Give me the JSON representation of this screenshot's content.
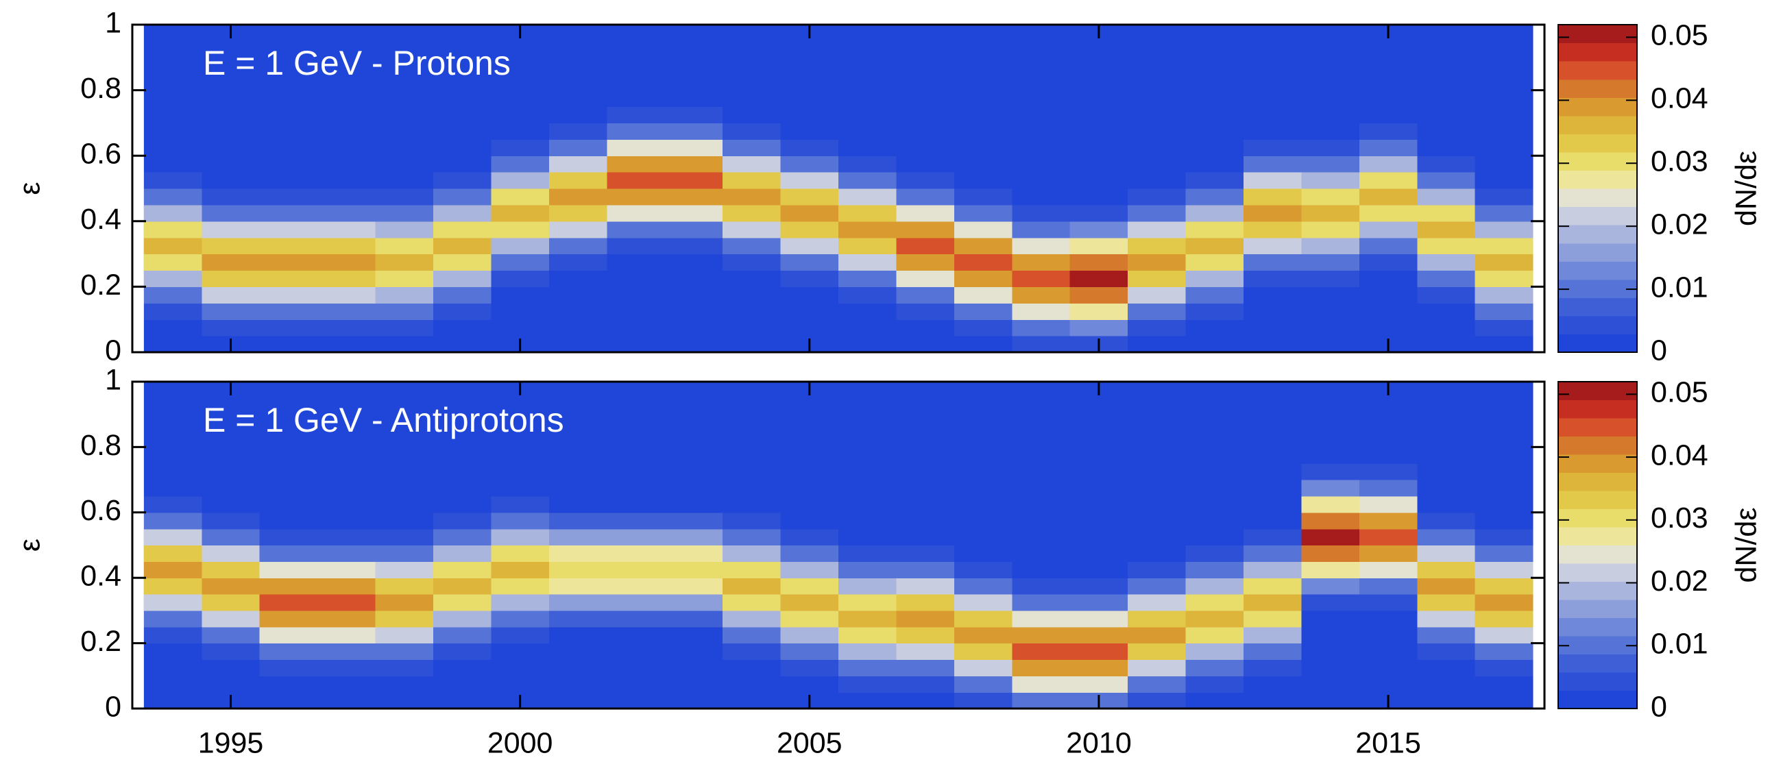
{
  "chart_data": [
    {
      "type": "heatmap",
      "title": "E = 1 GeV - Protons",
      "ylabel": "ε",
      "colorbar_label": "dN/dε",
      "xlim": [
        1993.3,
        2017.7
      ],
      "xticks": [
        1995,
        2000,
        2005,
        2010,
        2015
      ],
      "ylim": [
        0,
        1
      ],
      "yticks": [
        0,
        0.2,
        0.4,
        0.6,
        0.8,
        1
      ],
      "zlim": [
        0,
        0.052
      ],
      "zticks": [
        0,
        0.01,
        0.02,
        0.03,
        0.04,
        0.05
      ],
      "colorscale": [
        "#1f46d8",
        "#2e50d6",
        "#3f5fd6",
        "#5673d8",
        "#7088d9",
        "#8d9fdb",
        "#aab5dd",
        "#c9cde0",
        "#e4e2d0",
        "#ece59a",
        "#e8dc6a",
        "#e2c94a",
        "#dcb53a",
        "#d99a30",
        "#d57a2c",
        "#d7522a",
        "#c62e22",
        "#a61c1c"
      ],
      "background": "#1f46d8",
      "xbins": [
        1993.5,
        1994.5,
        1995.5,
        1996.5,
        1997.5,
        1998.5,
        1999.5,
        2000.5,
        2001.5,
        2002.5,
        2003.5,
        2004.5,
        2005.5,
        2006.5,
        2007.5,
        2008.5,
        2009.5,
        2010.5,
        2011.5,
        2012.5,
        2013.5,
        2014.5,
        2015.5,
        2016.5,
        2017.5
      ],
      "ybins": [
        0,
        0.05,
        0.1,
        0.15,
        0.2,
        0.25,
        0.3,
        0.35,
        0.4,
        0.45,
        0.5,
        0.55,
        0.6,
        0.65,
        0.7,
        0.75,
        0.8,
        0.85,
        0.9,
        0.95,
        1
      ],
      "z": [
        [
          0,
          0.001,
          0.003,
          0.009,
          0.019,
          0.03,
          0.035,
          0.03,
          0.019,
          0.009,
          0.003,
          0.001,
          0,
          0,
          0,
          0,
          0,
          0,
          0,
          0
        ],
        [
          0.001,
          0.003,
          0.01,
          0.022,
          0.034,
          0.04,
          0.034,
          0.022,
          0.01,
          0.003,
          0.001,
          0,
          0,
          0,
          0,
          0,
          0,
          0,
          0,
          0
        ],
        [
          0.001,
          0.003,
          0.01,
          0.022,
          0.034,
          0.04,
          0.034,
          0.022,
          0.01,
          0.003,
          0.001,
          0,
          0,
          0,
          0,
          0,
          0,
          0,
          0,
          0
        ],
        [
          0.001,
          0.003,
          0.01,
          0.022,
          0.034,
          0.04,
          0.034,
          0.022,
          0.01,
          0.003,
          0.001,
          0,
          0,
          0,
          0,
          0,
          0,
          0,
          0,
          0
        ],
        [
          0.001,
          0.003,
          0.009,
          0.019,
          0.03,
          0.035,
          0.03,
          0.019,
          0.009,
          0.003,
          0.001,
          0,
          0,
          0,
          0,
          0,
          0,
          0,
          0,
          0
        ],
        [
          0,
          0.001,
          0.003,
          0.009,
          0.019,
          0.03,
          0.035,
          0.03,
          0.019,
          0.009,
          0.003,
          0.001,
          0,
          0,
          0,
          0,
          0,
          0,
          0,
          0
        ],
        [
          0,
          0,
          0,
          0.001,
          0.003,
          0.009,
          0.019,
          0.03,
          0.035,
          0.03,
          0.019,
          0.009,
          0.003,
          0.001,
          0,
          0,
          0,
          0,
          0,
          0
        ],
        [
          0,
          0,
          0,
          0,
          0.001,
          0.003,
          0.01,
          0.022,
          0.034,
          0.04,
          0.034,
          0.022,
          0.01,
          0.003,
          0.001,
          0,
          0,
          0,
          0,
          0
        ],
        [
          0,
          0,
          0,
          0,
          0,
          0.001,
          0.004,
          0.011,
          0.025,
          0.038,
          0.045,
          0.038,
          0.025,
          0.011,
          0.004,
          0.001,
          0,
          0,
          0,
          0
        ],
        [
          0,
          0,
          0,
          0,
          0,
          0.001,
          0.004,
          0.011,
          0.025,
          0.038,
          0.045,
          0.038,
          0.025,
          0.011,
          0.004,
          0.001,
          0,
          0,
          0,
          0
        ],
        [
          0,
          0,
          0,
          0,
          0.001,
          0.003,
          0.01,
          0.022,
          0.034,
          0.04,
          0.034,
          0.022,
          0.01,
          0.003,
          0.001,
          0,
          0,
          0,
          0,
          0
        ],
        [
          0,
          0,
          0,
          0.001,
          0.003,
          0.01,
          0.022,
          0.034,
          0.04,
          0.034,
          0.022,
          0.01,
          0.003,
          0.001,
          0,
          0,
          0,
          0,
          0,
          0
        ],
        [
          0,
          0,
          0.001,
          0.003,
          0.01,
          0.022,
          0.034,
          0.04,
          0.034,
          0.022,
          0.01,
          0.003,
          0.001,
          0,
          0,
          0,
          0,
          0,
          0,
          0
        ],
        [
          0,
          0.001,
          0.004,
          0.011,
          0.025,
          0.038,
          0.045,
          0.038,
          0.025,
          0.011,
          0.004,
          0.001,
          0,
          0,
          0,
          0,
          0,
          0,
          0,
          0
        ],
        [
          0.001,
          0.004,
          0.011,
          0.025,
          0.038,
          0.045,
          0.038,
          0.025,
          0.011,
          0.004,
          0.001,
          0,
          0,
          0,
          0,
          0,
          0,
          0,
          0,
          0
        ],
        [
          0.004,
          0.011,
          0.025,
          0.038,
          0.045,
          0.038,
          0.025,
          0.011,
          0.004,
          0.001,
          0,
          0,
          0,
          0,
          0,
          0,
          0,
          0,
          0,
          0
        ],
        [
          0.004,
          0.013,
          0.028,
          0.043,
          0.05,
          0.043,
          0.028,
          0.013,
          0.004,
          0.001,
          0,
          0,
          0,
          0,
          0,
          0,
          0,
          0,
          0,
          0
        ],
        [
          0.001,
          0.003,
          0.01,
          0.022,
          0.034,
          0.04,
          0.034,
          0.022,
          0.01,
          0.003,
          0.001,
          0,
          0,
          0,
          0,
          0,
          0,
          0,
          0,
          0
        ],
        [
          0,
          0.001,
          0.003,
          0.009,
          0.019,
          0.03,
          0.035,
          0.03,
          0.019,
          0.009,
          0.003,
          0.001,
          0,
          0,
          0,
          0,
          0,
          0,
          0,
          0
        ],
        [
          0,
          0,
          0,
          0.001,
          0.003,
          0.01,
          0.022,
          0.034,
          0.04,
          0.034,
          0.022,
          0.01,
          0.003,
          0.001,
          0,
          0,
          0,
          0,
          0,
          0
        ],
        [
          0,
          0,
          0,
          0.001,
          0.003,
          0.009,
          0.019,
          0.03,
          0.035,
          0.03,
          0.019,
          0.009,
          0.003,
          0.001,
          0,
          0,
          0,
          0,
          0,
          0
        ],
        [
          0,
          0,
          0,
          0,
          0.001,
          0.003,
          0.009,
          0.019,
          0.03,
          0.035,
          0.03,
          0.019,
          0.009,
          0.003,
          0.001,
          0,
          0,
          0,
          0,
          0
        ],
        [
          0,
          0,
          0.001,
          0.003,
          0.009,
          0.019,
          0.03,
          0.035,
          0.03,
          0.019,
          0.009,
          0.003,
          0.001,
          0,
          0,
          0,
          0,
          0,
          0,
          0
        ],
        [
          0.001,
          0.003,
          0.009,
          0.019,
          0.03,
          0.035,
          0.03,
          0.019,
          0.009,
          0.003,
          0.001,
          0,
          0,
          0,
          0,
          0,
          0,
          0,
          0,
          0
        ]
      ]
    },
    {
      "type": "heatmap",
      "title": "E = 1 GeV - Antiprotons",
      "ylabel": "ε",
      "colorbar_label": "dN/dε",
      "xlim": [
        1993.3,
        2017.7
      ],
      "xticks": [
        1995,
        2000,
        2005,
        2010,
        2015
      ],
      "ylim": [
        0,
        1
      ],
      "yticks": [
        0,
        0.2,
        0.4,
        0.6,
        0.8,
        1
      ],
      "zlim": [
        0,
        0.052
      ],
      "zticks": [
        0,
        0.01,
        0.02,
        0.03,
        0.04,
        0.05
      ],
      "colorscale": [
        "#1f46d8",
        "#2e50d6",
        "#3f5fd6",
        "#5673d8",
        "#7088d9",
        "#8d9fdb",
        "#aab5dd",
        "#c9cde0",
        "#e4e2d0",
        "#ece59a",
        "#e8dc6a",
        "#e2c94a",
        "#dcb53a",
        "#d99a30",
        "#d57a2c",
        "#d7522a",
        "#c62e22",
        "#a61c1c"
      ],
      "background": "#1f46d8",
      "xbins": [
        1993.5,
        1994.5,
        1995.5,
        1996.5,
        1997.5,
        1998.5,
        1999.5,
        2000.5,
        2001.5,
        2002.5,
        2003.5,
        2004.5,
        2005.5,
        2006.5,
        2007.5,
        2008.5,
        2009.5,
        2010.5,
        2011.5,
        2012.5,
        2013.5,
        2014.5,
        2015.5,
        2016.5,
        2017.5
      ],
      "ybins": [
        0,
        0.05,
        0.1,
        0.15,
        0.2,
        0.25,
        0.3,
        0.35,
        0.4,
        0.45,
        0.5,
        0.55,
        0.6,
        0.65,
        0.7,
        0.75,
        0.8,
        0.85,
        0.9,
        0.95,
        1
      ],
      "z": [
        [
          0,
          0,
          0,
          0.001,
          0.003,
          0.01,
          0.022,
          0.034,
          0.04,
          0.034,
          0.022,
          0.01,
          0.003,
          0.001,
          0,
          0,
          0,
          0,
          0,
          0
        ],
        [
          0,
          0,
          0.001,
          0.003,
          0.01,
          0.022,
          0.034,
          0.04,
          0.034,
          0.022,
          0.01,
          0.003,
          0.001,
          0,
          0,
          0,
          0,
          0,
          0,
          0
        ],
        [
          0,
          0.001,
          0.004,
          0.011,
          0.025,
          0.038,
          0.045,
          0.038,
          0.025,
          0.011,
          0.004,
          0.001,
          0,
          0,
          0,
          0,
          0,
          0,
          0,
          0
        ],
        [
          0,
          0.001,
          0.004,
          0.011,
          0.025,
          0.038,
          0.045,
          0.038,
          0.025,
          0.011,
          0.004,
          0.001,
          0,
          0,
          0,
          0,
          0,
          0,
          0,
          0
        ],
        [
          0,
          0.001,
          0.003,
          0.01,
          0.022,
          0.034,
          0.04,
          0.034,
          0.022,
          0.01,
          0.003,
          0.001,
          0,
          0,
          0,
          0,
          0,
          0,
          0,
          0
        ],
        [
          0,
          0,
          0.001,
          0.003,
          0.009,
          0.019,
          0.03,
          0.035,
          0.03,
          0.019,
          0.009,
          0.003,
          0.001,
          0,
          0,
          0,
          0,
          0,
          0,
          0
        ],
        [
          0,
          0,
          0,
          0.001,
          0.003,
          0.009,
          0.019,
          0.03,
          0.035,
          0.03,
          0.019,
          0.009,
          0.003,
          0.001,
          0,
          0,
          0,
          0,
          0,
          0
        ],
        [
          0,
          0,
          0,
          0.001,
          0.002,
          0.008,
          0.017,
          0.026,
          0.03,
          0.026,
          0.017,
          0.008,
          0.002,
          0.001,
          0,
          0,
          0,
          0,
          0,
          0
        ],
        [
          0,
          0,
          0,
          0.001,
          0.002,
          0.008,
          0.017,
          0.026,
          0.03,
          0.026,
          0.017,
          0.008,
          0.002,
          0.001,
          0,
          0,
          0,
          0,
          0,
          0
        ],
        [
          0,
          0,
          0,
          0.001,
          0.002,
          0.008,
          0.017,
          0.026,
          0.03,
          0.026,
          0.017,
          0.008,
          0.002,
          0.001,
          0,
          0,
          0,
          0,
          0,
          0
        ],
        [
          0,
          0,
          0.001,
          0.003,
          0.009,
          0.019,
          0.03,
          0.035,
          0.03,
          0.019,
          0.009,
          0.003,
          0.001,
          0,
          0,
          0,
          0,
          0,
          0,
          0
        ],
        [
          0,
          0.001,
          0.003,
          0.009,
          0.019,
          0.03,
          0.035,
          0.03,
          0.019,
          0.009,
          0.003,
          0.001,
          0,
          0,
          0,
          0,
          0,
          0,
          0,
          0
        ],
        [
          0.001,
          0.003,
          0.009,
          0.019,
          0.03,
          0.035,
          0.03,
          0.019,
          0.009,
          0.003,
          0.001,
          0,
          0,
          0,
          0,
          0,
          0,
          0,
          0,
          0
        ],
        [
          0.001,
          0.003,
          0.01,
          0.022,
          0.034,
          0.04,
          0.034,
          0.022,
          0.01,
          0.003,
          0.001,
          0,
          0,
          0,
          0,
          0,
          0,
          0,
          0,
          0
        ],
        [
          0.003,
          0.01,
          0.022,
          0.034,
          0.04,
          0.034,
          0.022,
          0.01,
          0.003,
          0.001,
          0,
          0,
          0,
          0,
          0,
          0,
          0,
          0,
          0,
          0
        ],
        [
          0.011,
          0.025,
          0.038,
          0.045,
          0.038,
          0.025,
          0.011,
          0.004,
          0.001,
          0,
          0,
          0,
          0,
          0,
          0,
          0,
          0,
          0,
          0,
          0
        ],
        [
          0.011,
          0.025,
          0.038,
          0.045,
          0.038,
          0.025,
          0.011,
          0.004,
          0.001,
          0,
          0,
          0,
          0,
          0,
          0,
          0,
          0,
          0,
          0,
          0
        ],
        [
          0.003,
          0.01,
          0.022,
          0.034,
          0.04,
          0.034,
          0.022,
          0.01,
          0.003,
          0.001,
          0,
          0,
          0,
          0,
          0,
          0,
          0,
          0,
          0,
          0
        ],
        [
          0.001,
          0.003,
          0.009,
          0.019,
          0.03,
          0.035,
          0.03,
          0.019,
          0.009,
          0.003,
          0.001,
          0,
          0,
          0,
          0,
          0,
          0,
          0,
          0,
          0
        ],
        [
          0,
          0.001,
          0.003,
          0.009,
          0.019,
          0.03,
          0.035,
          0.03,
          0.019,
          0.009,
          0.003,
          0.001,
          0,
          0,
          0,
          0,
          0,
          0,
          0,
          0
        ],
        [
          0,
          0,
          0,
          0,
          0,
          0.001,
          0.004,
          0.013,
          0.028,
          0.043,
          0.05,
          0.043,
          0.028,
          0.013,
          0.004,
          0.001,
          0,
          0,
          0,
          0
        ],
        [
          0,
          0,
          0,
          0,
          0,
          0.001,
          0.004,
          0.011,
          0.025,
          0.038,
          0.045,
          0.038,
          0.025,
          0.011,
          0.004,
          0.001,
          0,
          0,
          0,
          0
        ],
        [
          0,
          0,
          0.001,
          0.003,
          0.01,
          0.022,
          0.034,
          0.04,
          0.034,
          0.022,
          0.01,
          0.003,
          0.001,
          0,
          0,
          0,
          0,
          0,
          0,
          0
        ],
        [
          0,
          0.001,
          0.003,
          0.01,
          0.022,
          0.034,
          0.04,
          0.034,
          0.022,
          0.01,
          0.003,
          0.001,
          0,
          0,
          0,
          0,
          0,
          0,
          0,
          0
        ]
      ]
    }
  ]
}
